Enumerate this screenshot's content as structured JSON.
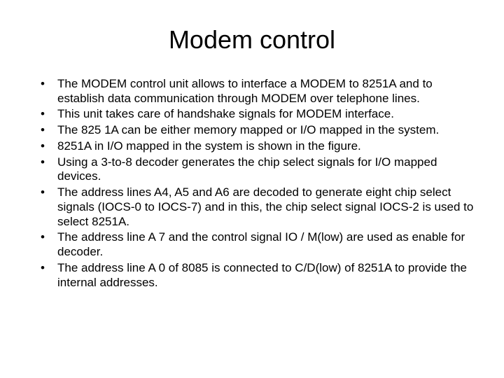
{
  "slide": {
    "title": "Modem control",
    "bullets": [
      "The MODEM control unit allows to interface a MODEM to 8251A and to establish data communication through MODEM over telephone lines.",
      "This unit takes care of handshake signals for MODEM interface.",
      "The 825 1A can be either memory mapped or I/O mapped in the system.",
      "8251A in I/O mapped in the system is shown in the figure.",
      "Using a 3-to-8 decoder generates the chip select signals for I/O mapped devices.",
      "The address lines A4, A5 and A6 are decoded to generate eight chip select signals (IOCS-0 to IOCS-7) and in this, the chip select signal IOCS-2 is used to select 8251A.",
      "The address line A 7 and the control signal IO / M(low) are used as enable for decoder.",
      "The address line A 0 of 8085 is connected to C/D(low) of 8251A to provide the internal addresses."
    ],
    "colors": {
      "background": "#ffffff",
      "text": "#000000"
    },
    "typography": {
      "title_fontsize": 36,
      "body_fontsize": 17,
      "font_family": "Arial"
    }
  }
}
